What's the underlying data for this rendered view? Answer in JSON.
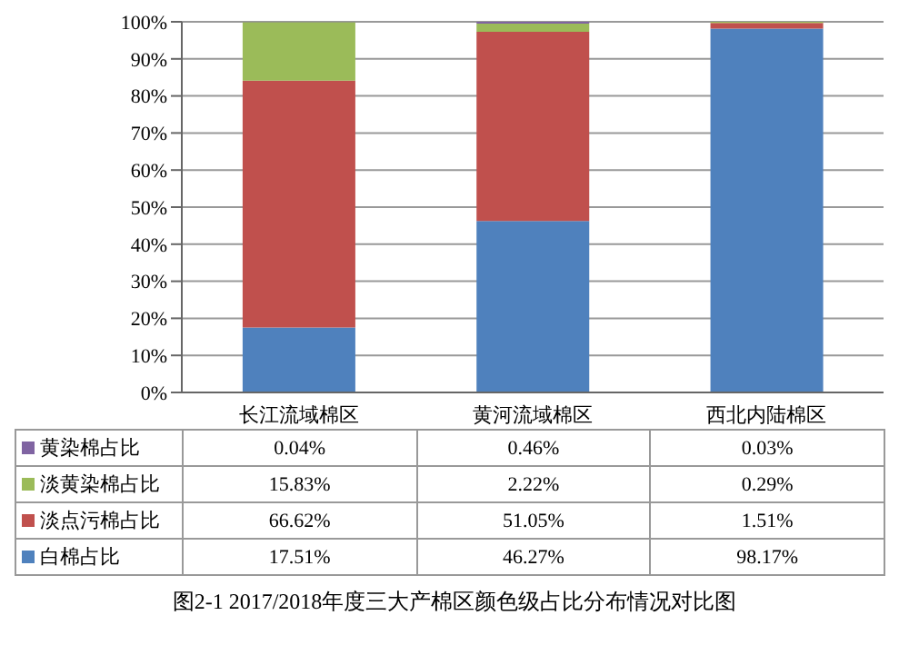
{
  "chart_data": {
    "type": "bar",
    "stacked": true,
    "title": "图2-1 2017/2018年度三大产棉区颜色级占比分布情况对比图",
    "categories": [
      "长江流域棉区",
      "黄河流域棉区",
      "西北内陆棉区"
    ],
    "series": [
      {
        "name": "白棉占比",
        "color": "#4f81bd",
        "values": [
          17.51,
          46.27,
          98.17
        ],
        "value_labels": [
          "17.51%",
          "46.27%",
          "98.17%"
        ]
      },
      {
        "name": "淡点污棉占比",
        "color": "#c0504d",
        "values": [
          66.62,
          51.05,
          1.51
        ],
        "value_labels": [
          "66.62%",
          "51.05%",
          "1.51%"
        ]
      },
      {
        "name": "淡黄染棉占比",
        "color": "#9bbb59",
        "values": [
          15.83,
          2.22,
          0.29
        ],
        "value_labels": [
          "15.83%",
          "2.22%",
          "0.29%"
        ]
      },
      {
        "name": "黄染棉占比",
        "color": "#8064a2",
        "values": [
          0.04,
          0.46,
          0.03
        ],
        "value_labels": [
          "0.04%",
          "0.46%",
          "0.03%"
        ]
      }
    ],
    "ylim": [
      0,
      100
    ],
    "yticks": [
      {
        "value": 0,
        "label": "0%"
      },
      {
        "value": 10,
        "label": "10%"
      },
      {
        "value": 20,
        "label": "20%"
      },
      {
        "value": 30,
        "label": "30%"
      },
      {
        "value": 40,
        "label": "40%"
      },
      {
        "value": 50,
        "label": "50%"
      },
      {
        "value": 60,
        "label": "60%"
      },
      {
        "value": 70,
        "label": "70%"
      },
      {
        "value": 80,
        "label": "80%"
      },
      {
        "value": 90,
        "label": "90%"
      },
      {
        "value": 100,
        "label": "100%"
      }
    ],
    "grid": "y",
    "legend": "bottom"
  }
}
